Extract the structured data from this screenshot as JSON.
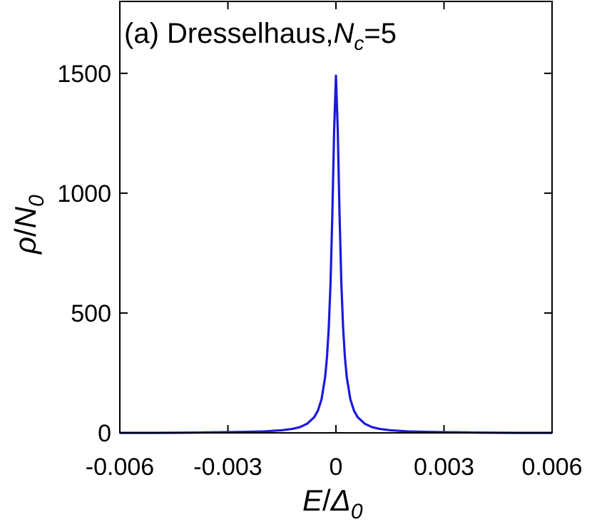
{
  "chart_data": {
    "type": "line",
    "title": {
      "prefix": "(a) Dresselhaus,",
      "var": "N",
      "sub": "c",
      "suffix": "=5"
    },
    "xlabel": {
      "var": "E",
      "slash": "/",
      "denom": "Δ",
      "sub": "0"
    },
    "ylabel": {
      "var": "ρ",
      "slash": "/",
      "denom": "N",
      "sub": "0"
    },
    "xlim": [
      -0.006,
      0.006
    ],
    "ylim": [
      0,
      1800
    ],
    "x_ticks": [
      {
        "value": -0.006,
        "label": "-0.006"
      },
      {
        "value": -0.003,
        "label": "-0.003"
      },
      {
        "value": 0,
        "label": "0"
      },
      {
        "value": 0.003,
        "label": "0.003"
      },
      {
        "value": 0.006,
        "label": "0.006"
      }
    ],
    "y_ticks": [
      {
        "value": 0,
        "label": "0"
      },
      {
        "value": 500,
        "label": "500"
      },
      {
        "value": 1000,
        "label": "1000"
      },
      {
        "value": 1500,
        "label": "1500"
      }
    ],
    "grid": false,
    "legend": "none",
    "series": [
      {
        "color": "#1a1adc",
        "x": [
          -0.006,
          -0.005,
          -0.004,
          -0.003,
          -0.0025,
          -0.002,
          -0.0015,
          -0.0012,
          -0.001,
          -0.0008,
          -0.0006,
          -0.0005,
          -0.0004,
          -0.0003,
          -0.00025,
          -0.0002,
          -0.00015,
          -0.0001,
          -5e-05,
          0,
          5e-05,
          0.0001,
          0.00015,
          0.0002,
          0.00025,
          0.0003,
          0.0004,
          0.0005,
          0.0006,
          0.0008,
          0.001,
          0.0012,
          0.0015,
          0.002,
          0.0025,
          0.003,
          0.004,
          0.005,
          0.006
        ],
        "y": [
          0,
          0,
          1,
          3,
          4,
          6,
          11,
          17,
          24,
          38,
          66,
          93,
          140,
          233,
          314,
          436,
          625,
          913,
          1264,
          1490,
          1264,
          913,
          625,
          436,
          314,
          233,
          140,
          93,
          66,
          38,
          24,
          17,
          11,
          6,
          4,
          3,
          1,
          0,
          0
        ]
      }
    ]
  }
}
